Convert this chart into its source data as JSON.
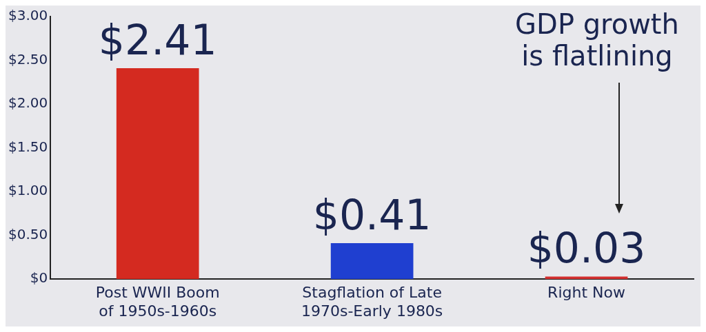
{
  "chart_data": {
    "type": "bar",
    "categories": [
      "Post WWII Boom\nof 1950s-1960s",
      "Stagflation of Late\n1970s-Early 1980s",
      "Right Now"
    ],
    "values": [
      2.41,
      0.41,
      0.03
    ],
    "colors": [
      "#d42a20",
      "#1f3fd0",
      "#d43030"
    ],
    "value_labels": [
      "$2.41",
      "$0.41",
      "$0.03"
    ],
    "ylim": [
      0,
      3
    ],
    "yticks": [
      {
        "value": 0,
        "label": "$0"
      },
      {
        "value": 0.5,
        "label": "$0.50"
      },
      {
        "value": 1,
        "label": "$1.00"
      },
      {
        "value": 1.5,
        "label": "$1.50"
      },
      {
        "value": 2,
        "label": "$2.00"
      },
      {
        "value": 2.5,
        "label": "$2.50"
      },
      {
        "value": 3,
        "label": "$3.00"
      }
    ],
    "grid": false,
    "legend": false,
    "annotations": [
      "GDP growth is flatlining"
    ]
  }
}
